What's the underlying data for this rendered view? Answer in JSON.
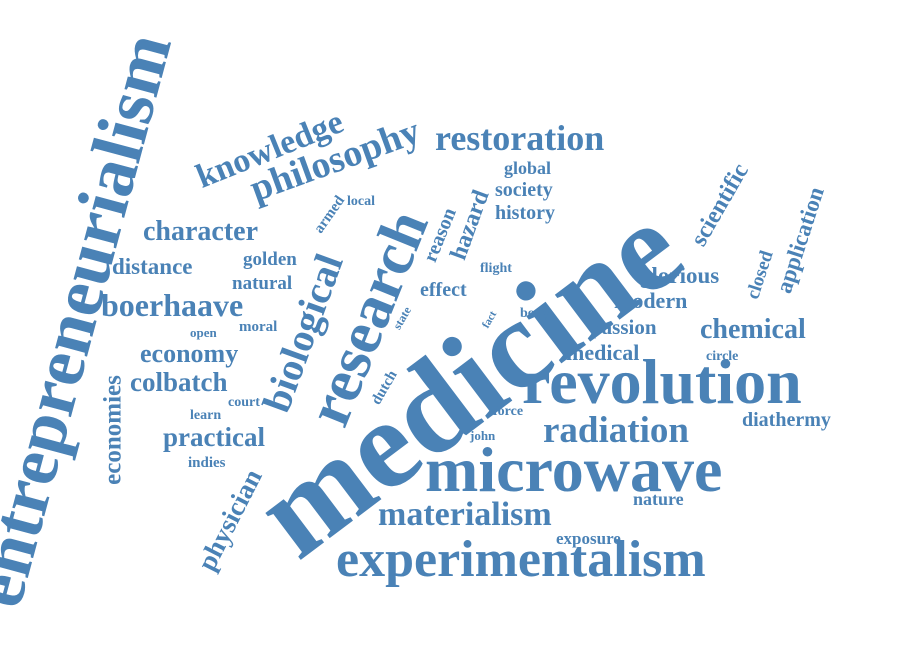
{
  "theme": {
    "word_color": "#4a82b6",
    "background": "#ffffff"
  },
  "words": {
    "entrepreneurialism": "entrepreneurialism",
    "medicine": "medicine",
    "revolution": "revolution",
    "microwave": "microwave",
    "experimentalism": "experimentalism",
    "research": "research",
    "restoration": "restoration",
    "philosophy": "philosophy",
    "knowledge": "knowledge",
    "biological": "biological",
    "materialism": "materialism",
    "radiation": "radiation",
    "boerhaave": "boerhaave",
    "character": "character",
    "economy": "economy",
    "colbatch": "colbatch",
    "practical": "practical",
    "distance": "distance",
    "economies": "economies",
    "physician": "physician",
    "chemical": "chemical",
    "scientific": "scientific",
    "application": "application",
    "glorious": "glorious",
    "modern": "modern",
    "passion": "passion",
    "medical": "medical",
    "diathermy": "diathermy",
    "hazard": "hazard",
    "reason": "reason",
    "effect": "effect",
    "global": "global",
    "society": "society",
    "history": "history",
    "exposure": "exposure",
    "nature": "nature",
    "closed": "closed",
    "golden": "golden",
    "natural": "natural",
    "armed": "armed",
    "moral": "moral",
    "open": "open",
    "court": "court",
    "learn": "learn",
    "indies": "indies",
    "local": "local",
    "dutch": "dutch",
    "state": "state",
    "flight": "flight",
    "fact": "fact",
    "body": "body",
    "force": "force",
    "john": "john",
    "circle": "circle"
  }
}
